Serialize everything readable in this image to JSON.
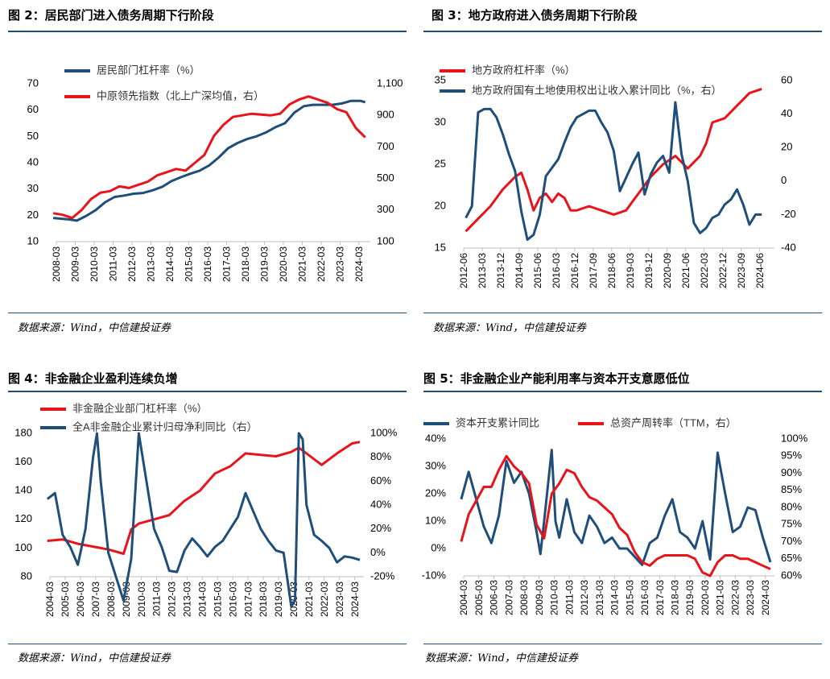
{
  "colors": {
    "blue": "#1f4e79",
    "red": "#e8141b"
  },
  "charts": [
    {
      "title": "图 2：居民部门进入债务周期下行阶段",
      "source": "数据来源：Wind，中信建投证券",
      "chart_data": {
        "type": "line",
        "legend_position": "top",
        "xlabels": [
          "2008-03",
          "2009-03",
          "2010-03",
          "2011-03",
          "2012-03",
          "2013-03",
          "2014-03",
          "2015-03",
          "2016-03",
          "2017-03",
          "2018-03",
          "2019-03",
          "2020-03",
          "2021-03",
          "2022-03",
          "2023-03",
          "2024-03"
        ],
        "yleft": {
          "ticks": [
            "70",
            "60",
            "50",
            "40",
            "30",
            "20",
            "10"
          ],
          "range": [
            10,
            70
          ]
        },
        "yright": {
          "ticks": [
            "1,100",
            "900",
            "700",
            "500",
            "300",
            "100"
          ],
          "range": [
            100,
            1100
          ]
        },
        "series": [
          {
            "name": "居民部门杠杆率（%）",
            "color": "#1f4e79",
            "axis": "left",
            "x": [
              2008.0,
              2008.75,
              2009.25,
              2009.75,
              2010.25,
              2010.75,
              2011.25,
              2011.75,
              2012.25,
              2012.75,
              2013.25,
              2013.75,
              2014.25,
              2014.75,
              2015.25,
              2015.75,
              2016.25,
              2016.75,
              2017.25,
              2017.75,
              2018.25,
              2018.75,
              2019.25,
              2019.75,
              2020.25,
              2020.5,
              2020.75,
              2021.25,
              2021.75,
              2022.25,
              2022.75,
              2023.25,
              2023.75,
              2024.25,
              2024.5
            ],
            "y": [
              19,
              18.5,
              18,
              19.8,
              22,
              25,
              27,
              27.5,
              28.2,
              28.5,
              29.5,
              30.8,
              33,
              34.5,
              35.8,
              37,
              39,
              42,
              45.5,
              47.5,
              49,
              50,
              51.5,
              53.5,
              55,
              57,
              59,
              61.5,
              62,
              62,
              62,
              62.5,
              63.5,
              63.5,
              63
            ]
          },
          {
            "name": "中原领先指数（北上广深均值，右）",
            "color": "#e8141b",
            "axis": "right",
            "x": [
              2008.0,
              2008.5,
              2009.0,
              2009.5,
              2010.0,
              2010.5,
              2011.0,
              2011.5,
              2012.0,
              2012.5,
              2013.0,
              2013.5,
              2014.0,
              2014.5,
              2015.0,
              2015.5,
              2016.0,
              2016.5,
              2017.0,
              2017.5,
              2018.0,
              2018.5,
              2019.0,
              2019.5,
              2020.0,
              2020.5,
              2021.0,
              2021.5,
              2022.0,
              2022.5,
              2023.0,
              2023.5,
              2024.0,
              2024.5
            ],
            "y": [
              280,
              270,
              250,
              300,
              370,
              410,
              420,
              450,
              440,
              460,
              480,
              520,
              540,
              560,
              550,
              600,
              650,
              770,
              840,
              890,
              900,
              910,
              905,
              900,
              910,
              970,
              1000,
              1020,
              1000,
              980,
              940,
              920,
              820,
              760
            ]
          }
        ]
      }
    },
    {
      "title": "图 3：地方政府进入债务周期下行阶段",
      "source": "数据来源：Wind，中信建投证券",
      "chart_data": {
        "type": "line",
        "legend_position": "top",
        "xlabels": [
          "2012-06",
          "2013-03",
          "2013-12",
          "2014-09",
          "2015-06",
          "2016-03",
          "2016-12",
          "2017-09",
          "2018-06",
          "2019-03",
          "2019-12",
          "2020-09",
          "2021-06",
          "2022-03",
          "2022-12",
          "2023-09",
          "2024-06"
        ],
        "yleft": {
          "ticks": [
            "35",
            "30",
            "25",
            "20",
            "15"
          ],
          "range": [
            15,
            35
          ]
        },
        "yright": {
          "ticks": [
            "60",
            "40",
            "20",
            "0",
            "-20",
            "-40"
          ],
          "range": [
            -40,
            60
          ]
        },
        "series": [
          {
            "name": "地方政府杠杆率（%）",
            "color": "#e8141b",
            "axis": "left",
            "x": [
              2012.5,
              2013.0,
              2013.5,
              2014.0,
              2014.5,
              2014.75,
              2015.0,
              2015.25,
              2015.5,
              2015.75,
              2016.0,
              2016.25,
              2016.5,
              2016.75,
              2017.0,
              2017.5,
              2018.0,
              2018.5,
              2019.0,
              2019.25,
              2019.5,
              2020.0,
              2020.5,
              2021.0,
              2021.5,
              2022.0,
              2022.25,
              2022.5,
              2023.0,
              2023.5,
              2024.0,
              2024.5
            ],
            "y": [
              17,
              18.5,
              20,
              22,
              23.5,
              24,
              22,
              19.5,
              21,
              21.5,
              20.5,
              21.5,
              21,
              19.5,
              19.5,
              20,
              19.5,
              19,
              19.5,
              20.5,
              21.5,
              23.5,
              25,
              26,
              24.5,
              26,
              27.5,
              30,
              30.5,
              32,
              33.5,
              34
            ]
          },
          {
            "name": "地方政府国有土地使用权出让收入累计同比（%，右）",
            "color": "#1f4e79",
            "axis": "right",
            "x": [
              2012.5,
              2012.75,
              2013.0,
              2013.25,
              2013.5,
              2013.75,
              2014.0,
              2014.25,
              2014.5,
              2014.75,
              2015.0,
              2015.25,
              2015.5,
              2015.75,
              2016.0,
              2016.25,
              2016.5,
              2016.75,
              2017.0,
              2017.25,
              2017.5,
              2017.75,
              2018.0,
              2018.25,
              2018.5,
              2018.75,
              2019.0,
              2019.25,
              2019.5,
              2019.75,
              2020.0,
              2020.25,
              2020.5,
              2020.75,
              2021.0,
              2021.25,
              2021.5,
              2021.75,
              2022.0,
              2022.25,
              2022.5,
              2022.75,
              2023.0,
              2023.25,
              2023.5,
              2023.75,
              2024.0,
              2024.25,
              2024.5
            ],
            "y": [
              -22,
              -15,
              41,
              43,
              43,
              38,
              28,
              16,
              6,
              -18,
              -35,
              -32,
              -20,
              3,
              8,
              13,
              23,
              32,
              38,
              40,
              42,
              42,
              35,
              29,
              18,
              -6,
              2,
              10,
              17,
              -8,
              4,
              11,
              15,
              5,
              47,
              16,
              0,
              -25,
              -31,
              -28,
              -22,
              -20,
              -14,
              -11,
              -5,
              -14,
              -26,
              -20,
              -20
            ]
          }
        ]
      }
    },
    {
      "title": "图 4：非金融企业盈利连续负增",
      "source": "数据来源：Wind，中信建投证券",
      "chart_data": {
        "type": "line",
        "legend_position": "top",
        "xlabels": [
          "2004-03",
          "2005-03",
          "2006-03",
          "2007-03",
          "2008-03",
          "2009-03",
          "2010-03",
          "2011-03",
          "2012-03",
          "2013-03",
          "2014-03",
          "2015-03",
          "2016-03",
          "2017-03",
          "2018-03",
          "2019-03",
          "2020-03",
          "2021-03",
          "2022-03",
          "2023-03",
          "2024-03"
        ],
        "yleft": {
          "ticks": [
            "180",
            "160",
            "140",
            "120",
            "100",
            "80"
          ],
          "range": [
            80,
            180
          ]
        },
        "yright": {
          "ticks": [
            "100%",
            "80%",
            "60%",
            "40%",
            "20%",
            "0%",
            "-20%"
          ],
          "range": [
            -20,
            100
          ]
        },
        "series": [
          {
            "name": "非金融企业部门杠杆率（%）",
            "color": "#e8141b",
            "axis": "left",
            "x": [
              2004.0,
              2005.0,
              2006.0,
              2007.0,
              2008.0,
              2009.0,
              2009.5,
              2010.0,
              2011.0,
              2012.0,
              2013.0,
              2014.0,
              2015.0,
              2016.0,
              2017.0,
              2018.0,
              2019.0,
              2020.0,
              2020.5,
              2021.0,
              2022.0,
              2023.0,
              2024.0,
              2024.5
            ],
            "y": [
              105,
              106,
              103,
              101,
              99,
              96,
              113,
              117,
              120,
              123,
              133,
              140,
              152,
              157,
              166,
              165,
              164,
              167,
              170,
              166,
              158,
              166,
              173,
              174
            ]
          },
          {
            "name": "全A非金融企业累计归母净利同比（右）",
            "color": "#1f4e79",
            "axis": "right",
            "x": [
              2004.0,
              2004.5,
              2005.0,
              2005.5,
              2006.0,
              2006.5,
              2007.0,
              2007.25,
              2007.5,
              2008.0,
              2008.5,
              2009.0,
              2009.5,
              2010.0,
              2010.5,
              2011.0,
              2011.5,
              2012.0,
              2012.5,
              2013.0,
              2013.5,
              2014.0,
              2014.5,
              2015.0,
              2015.5,
              2016.0,
              2016.5,
              2017.0,
              2017.5,
              2018.0,
              2018.5,
              2019.0,
              2019.5,
              2020.0,
              2020.25,
              2020.5,
              2020.75,
              2021.0,
              2021.5,
              2022.0,
              2022.5,
              2023.0,
              2023.5,
              2024.0,
              2024.5
            ],
            "y": [
              45,
              50,
              15,
              5,
              -10,
              20,
              80,
              100,
              60,
              0,
              -20,
              -40,
              -5,
              100,
              60,
              20,
              5,
              -15,
              -16,
              2,
              12,
              5,
              -3,
              5,
              10,
              20,
              30,
              50,
              35,
              20,
              10,
              2,
              0,
              -45,
              -40,
              100,
              95,
              40,
              15,
              10,
              4,
              -8,
              -3,
              -4,
              -6
            ]
          }
        ]
      }
    },
    {
      "title": "图 5：非金融企业产能利用率与资本开支意愿低位",
      "source": "数据来源：Wind，中信建投证券",
      "chart_data": {
        "type": "line",
        "legend_position": "top",
        "xlabels": [
          "2004-03",
          "2005-03",
          "2006-03",
          "2007-03",
          "2008-03",
          "2009-03",
          "2010-03",
          "2011-03",
          "2012-03",
          "2013-03",
          "2014-03",
          "2015-03",
          "2016-03",
          "2017-03",
          "2018-03",
          "2019-03",
          "2020-03",
          "2021-03",
          "2022-03",
          "2023-03",
          "2024-03"
        ],
        "yleft": {
          "ticks": [
            "40%",
            "30%",
            "20%",
            "10%",
            "0%",
            "-10%"
          ],
          "range": [
            -10,
            40
          ]
        },
        "yright": {
          "ticks": [
            "100%",
            "95%",
            "90%",
            "85%",
            "80%",
            "75%",
            "70%",
            "65%",
            "60%"
          ],
          "range": [
            60,
            100
          ]
        },
        "series": [
          {
            "name": "资本开支累计同比",
            "color": "#1f4e79",
            "axis": "left",
            "x": [
              2004.0,
              2004.5,
              2005.0,
              2005.5,
              2006.0,
              2006.5,
              2007.0,
              2007.5,
              2008.0,
              2008.5,
              2009.0,
              2009.25,
              2009.5,
              2010.0,
              2010.25,
              2010.5,
              2011.0,
              2011.5,
              2012.0,
              2012.5,
              2013.0,
              2013.5,
              2014.0,
              2014.5,
              2015.0,
              2015.5,
              2016.0,
              2016.5,
              2017.0,
              2017.5,
              2018.0,
              2018.5,
              2019.0,
              2019.5,
              2020.0,
              2020.5,
              2021.0,
              2021.5,
              2022.0,
              2022.5,
              2023.0,
              2023.5,
              2024.0,
              2024.5
            ],
            "y": [
              18,
              28,
              18,
              8,
              2,
              12,
              32,
              24,
              28,
              20,
              6,
              -2,
              10,
              36,
              10,
              4,
              18,
              6,
              2,
              12,
              8,
              2,
              4,
              0,
              0,
              -3,
              -6,
              2,
              4,
              12,
              18,
              6,
              4,
              0,
              10,
              -4,
              35,
              20,
              6,
              8,
              15,
              14,
              4,
              -5
            ]
          },
          {
            "name": "总资产周转率（TTM，右）",
            "color": "#e8141b",
            "axis": "right",
            "x": [
              2004.0,
              2004.5,
              2005.0,
              2005.5,
              2006.0,
              2006.5,
              2007.0,
              2007.5,
              2008.0,
              2008.5,
              2009.0,
              2009.5,
              2010.0,
              2010.5,
              2011.0,
              2011.5,
              2012.0,
              2012.5,
              2013.0,
              2013.5,
              2014.0,
              2014.5,
              2015.0,
              2015.5,
              2016.0,
              2016.5,
              2017.0,
              2017.5,
              2018.0,
              2018.5,
              2019.0,
              2019.5,
              2020.0,
              2020.5,
              2021.0,
              2021.5,
              2022.0,
              2022.5,
              2023.0,
              2023.5,
              2024.0,
              2024.5
            ],
            "y": [
              70,
              78,
              82,
              86,
              86,
              91,
              95,
              92,
              90,
              87,
              75,
              71,
              84,
              87,
              91,
              90,
              86,
              83,
              82,
              80,
              78,
              74,
              72,
              67,
              64,
              63,
              65,
              66,
              66,
              66,
              66,
              65,
              61,
              60,
              64,
              66,
              66,
              65,
              65,
              64,
              63,
              62
            ]
          }
        ]
      }
    }
  ]
}
